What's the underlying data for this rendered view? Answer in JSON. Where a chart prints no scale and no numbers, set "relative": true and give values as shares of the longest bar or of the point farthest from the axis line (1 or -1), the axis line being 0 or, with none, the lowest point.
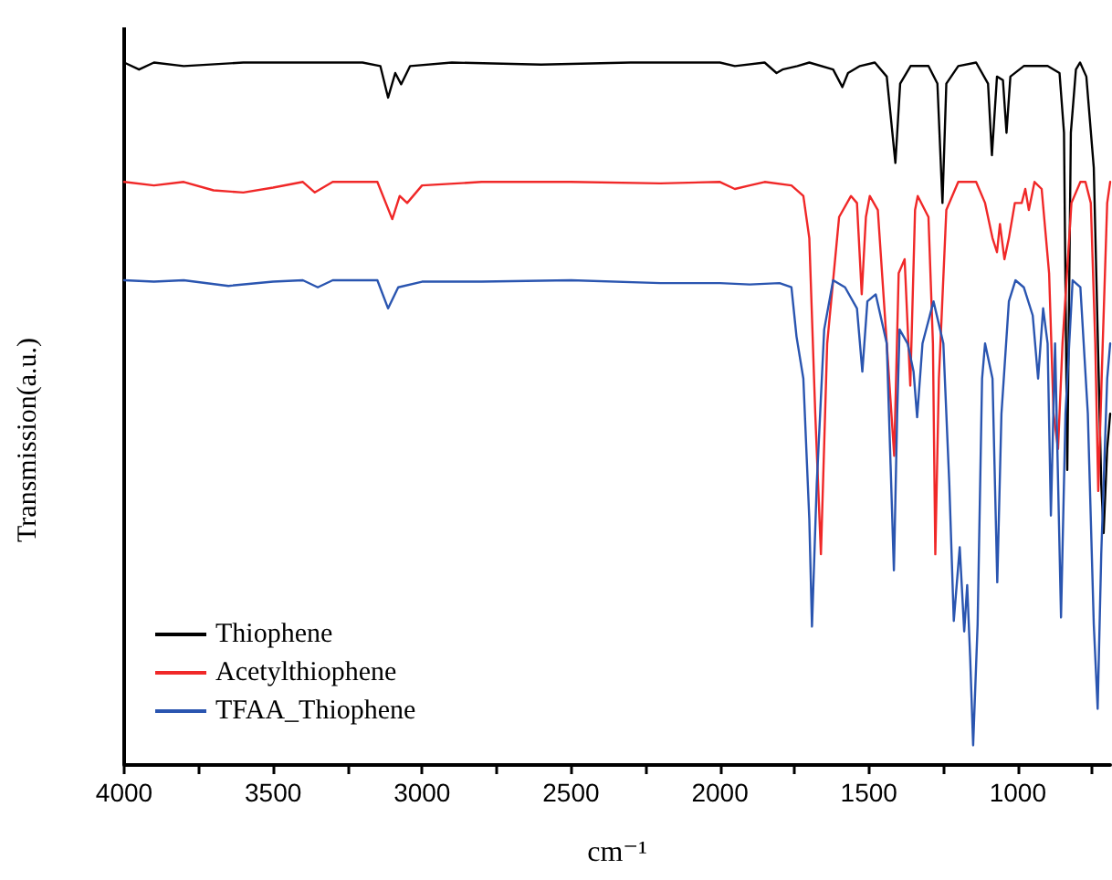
{
  "chart_data": {
    "type": "line",
    "xlabel": "cm⁻¹",
    "ylabel": "Transmission(a.u.)",
    "relative": true,
    "marker": "none",
    "line_style": "solid",
    "grid": false,
    "legend": "bottom left",
    "xlim": [
      4000,
      690
    ],
    "xticks": [
      4000,
      {
        "value": 3750,
        "label": null
      },
      3500,
      {
        "value": 3250,
        "label": null
      },
      3000,
      {
        "value": 2750,
        "label": null
      },
      2500,
      {
        "value": 2250,
        "label": null
      },
      2000,
      {
        "value": 1750,
        "label": null
      },
      1500,
      {
        "value": 1250,
        "label": null
      },
      1000,
      {
        "value": 750,
        "label": null
      }
    ],
    "series": [
      {
        "name": "Thiophene",
        "color": "#000000",
        "x": [
          4000,
          3950,
          3900,
          3800,
          3600,
          3400,
          3200,
          3140,
          3114,
          3090,
          3070,
          3040,
          2900,
          2600,
          2300,
          2000,
          1950,
          1850,
          1810,
          1790,
          1740,
          1700,
          1620,
          1589,
          1570,
          1530,
          1480,
          1440,
          1411,
          1395,
          1360,
          1300,
          1270,
          1253,
          1240,
          1200,
          1140,
          1100,
          1087,
          1070,
          1050,
          1038,
          1025,
          980,
          900,
          860,
          845,
          834,
          822,
          805,
          791,
          770,
          745,
          720,
          712,
          700,
          690
        ],
        "values": [
          1.0,
          0.99,
          1.0,
          0.995,
          1.0,
          1.0,
          1.0,
          0.995,
          0.95,
          0.985,
          0.969,
          0.995,
          1.0,
          0.997,
          1.0,
          1.0,
          0.995,
          1.0,
          0.985,
          0.99,
          0.995,
          1.0,
          0.99,
          0.965,
          0.985,
          0.995,
          1.0,
          0.98,
          0.857,
          0.97,
          0.995,
          0.995,
          0.97,
          0.8,
          0.97,
          0.995,
          1.0,
          0.97,
          0.868,
          0.98,
          0.975,
          0.9,
          0.98,
          0.995,
          0.995,
          0.985,
          0.9,
          0.42,
          0.9,
          0.99,
          1.0,
          0.98,
          0.85,
          0.4,
          0.33,
          0.45,
          0.5
        ]
      },
      {
        "name": "Acetylthiophene",
        "color": "#f02828",
        "x": [
          4000,
          3900,
          3800,
          3700,
          3600,
          3500,
          3400,
          3360,
          3300,
          3150,
          3100,
          3075,
          3050,
          3000,
          2800,
          2500,
          2200,
          2000,
          1950,
          1900,
          1850,
          1760,
          1720,
          1700,
          1680,
          1661,
          1640,
          1600,
          1560,
          1540,
          1524,
          1510,
          1497,
          1470,
          1440,
          1415,
          1400,
          1380,
          1361,
          1345,
          1336,
          1300,
          1285,
          1277,
          1265,
          1240,
          1200,
          1140,
          1110,
          1085,
          1070,
          1060,
          1045,
          1030,
          1010,
          987,
          975,
          963,
          944,
          920,
          895,
          880,
          865,
          850,
          820,
          790,
          773,
          755,
          740,
          730,
          715,
          700,
          690
        ],
        "values": [
          0.83,
          0.825,
          0.83,
          0.818,
          0.815,
          0.822,
          0.83,
          0.815,
          0.83,
          0.83,
          0.777,
          0.81,
          0.8,
          0.825,
          0.83,
          0.83,
          0.828,
          0.83,
          0.82,
          0.825,
          0.83,
          0.825,
          0.81,
          0.75,
          0.5,
          0.3,
          0.6,
          0.78,
          0.81,
          0.8,
          0.67,
          0.78,
          0.81,
          0.79,
          0.6,
          0.44,
          0.7,
          0.72,
          0.54,
          0.79,
          0.81,
          0.78,
          0.6,
          0.3,
          0.55,
          0.79,
          0.83,
          0.83,
          0.8,
          0.75,
          0.73,
          0.77,
          0.72,
          0.75,
          0.8,
          0.8,
          0.82,
          0.79,
          0.83,
          0.82,
          0.7,
          0.5,
          0.45,
          0.6,
          0.8,
          0.83,
          0.83,
          0.8,
          0.6,
          0.39,
          0.6,
          0.8,
          0.83
        ]
      },
      {
        "name": "TFAA_Thiophene",
        "color": "#2a55b0",
        "x": [
          4000,
          3900,
          3800,
          3650,
          3500,
          3400,
          3350,
          3300,
          3150,
          3114,
          3080,
          3000,
          2800,
          2500,
          2200,
          2000,
          1900,
          1800,
          1760,
          1743,
          1720,
          1700,
          1691,
          1675,
          1650,
          1620,
          1580,
          1540,
          1522,
          1505,
          1477,
          1440,
          1416,
          1405,
          1397,
          1370,
          1350,
          1338,
          1320,
          1283,
          1250,
          1230,
          1215,
          1195,
          1180,
          1170,
          1160,
          1150,
          1135,
          1120,
          1110,
          1085,
          1069,
          1055,
          1030,
          1008,
          980,
          950,
          932,
          915,
          900,
          889,
          875,
          855,
          840,
          816,
          790,
          765,
          745,
          732,
          720,
          700,
          690
        ],
        "values": [
          0.69,
          0.688,
          0.69,
          0.682,
          0.688,
          0.69,
          0.68,
          0.69,
          0.69,
          0.65,
          0.68,
          0.688,
          0.688,
          0.69,
          0.686,
          0.686,
          0.684,
          0.686,
          0.68,
          0.61,
          0.55,
          0.35,
          0.197,
          0.4,
          0.62,
          0.69,
          0.68,
          0.65,
          0.56,
          0.66,
          0.67,
          0.6,
          0.277,
          0.5,
          0.62,
          0.6,
          0.56,
          0.495,
          0.6,
          0.66,
          0.6,
          0.4,
          0.205,
          0.31,
          0.19,
          0.256,
          0.153,
          0.028,
          0.2,
          0.55,
          0.6,
          0.55,
          0.26,
          0.5,
          0.66,
          0.69,
          0.68,
          0.64,
          0.55,
          0.65,
          0.6,
          0.355,
          0.6,
          0.21,
          0.5,
          0.69,
          0.68,
          0.5,
          0.2,
          0.08,
          0.3,
          0.55,
          0.6
        ]
      }
    ]
  }
}
